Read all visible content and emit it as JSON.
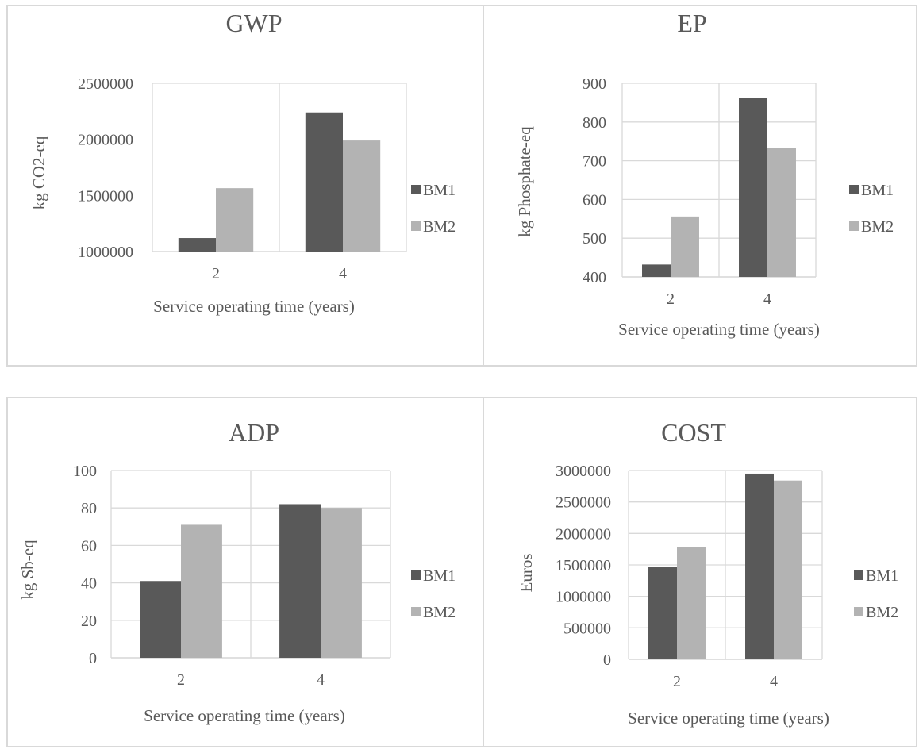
{
  "chart_data": [
    {
      "type": "bar",
      "title": "GWP",
      "categories": [
        "2",
        "4"
      ],
      "xlabel": "Service operating time (years)",
      "ylabel": "kg CO2-eq",
      "ylim": [
        1000000,
        2500000
      ],
      "yticks": [
        "1000000",
        "1500000",
        "2000000",
        "2500000"
      ],
      "grid": "vertical",
      "legend": "right",
      "series": [
        {
          "name": "BM1",
          "values": [
            1120000,
            2240000
          ]
        },
        {
          "name": "BM2",
          "values": [
            1565000,
            1990000
          ]
        }
      ]
    },
    {
      "type": "bar",
      "title": "EP",
      "categories": [
        "2",
        "4"
      ],
      "xlabel": "Service operating time (years)",
      "ylabel": "kg Phosphate-eq",
      "ylim": [
        400,
        900
      ],
      "yticks": [
        "400",
        "500",
        "600",
        "700",
        "800",
        "900"
      ],
      "grid": "both",
      "legend": "right",
      "series": [
        {
          "name": "BM1",
          "values": [
            432,
            862
          ]
        },
        {
          "name": "BM2",
          "values": [
            556,
            733
          ]
        }
      ]
    },
    {
      "type": "bar",
      "title": "ADP",
      "categories": [
        "2",
        "4"
      ],
      "xlabel": "Service operating time (years)",
      "ylabel": "kg Sb-eq",
      "ylim": [
        0,
        100
      ],
      "yticks": [
        "0",
        "20",
        "40",
        "60",
        "80",
        "100"
      ],
      "grid": "both",
      "legend": "right",
      "series": [
        {
          "name": "BM1",
          "values": [
            41,
            82
          ]
        },
        {
          "name": "BM2",
          "values": [
            71,
            80
          ]
        }
      ]
    },
    {
      "type": "bar",
      "title": "COST",
      "categories": [
        "2",
        "4"
      ],
      "xlabel": "Service operating time (years)",
      "ylabel": "Euros",
      "ylim": [
        0,
        3000000
      ],
      "yticks": [
        "0",
        "500000",
        "1000000",
        "1500000",
        "2000000",
        "2500000",
        "3000000"
      ],
      "grid": "both",
      "legend": "right",
      "series": [
        {
          "name": "BM1",
          "values": [
            1470000,
            2950000
          ]
        },
        {
          "name": "BM2",
          "values": [
            1780000,
            2840000
          ]
        }
      ]
    }
  ],
  "colors": {
    "BM1": "#595959",
    "BM2": "#b3b3b3",
    "grid": "#d9d9d9",
    "text": "#595959"
  }
}
